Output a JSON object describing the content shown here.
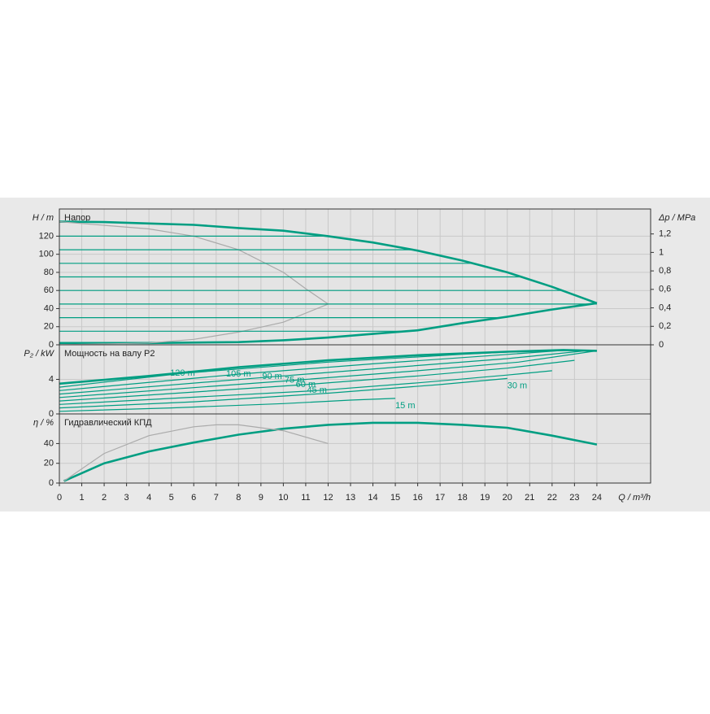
{
  "chart_data": [
    {
      "type": "line",
      "title": "Напор",
      "ylabel": "H / m",
      "y2label": "Δp / MPa",
      "xlim": [
        0,
        26.4
      ],
      "ylim": [
        0,
        150
      ],
      "yticks": [
        0,
        20,
        40,
        60,
        80,
        100,
        120
      ],
      "y2lim": [
        0,
        1.47
      ],
      "y2ticks": [
        0,
        {
          "value": 0.2,
          "label": "0,2"
        },
        {
          "value": 0.4,
          "label": "0,4"
        },
        {
          "value": 0.6,
          "label": "0,6"
        },
        {
          "value": 0.8,
          "label": "0,8"
        },
        1,
        {
          "value": 1.2,
          "label": "1,2"
        }
      ],
      "grid": true,
      "series": [
        {
          "color": "#009e82",
          "x": [
            0,
            2,
            4,
            6,
            8,
            10,
            12,
            14,
            16,
            18,
            20,
            22,
            24
          ],
          "values": [
            136,
            135.5,
            134,
            132.5,
            129,
            126,
            120,
            113,
            104,
            93,
            80,
            64,
            46
          ]
        },
        {
          "color": "#009e82",
          "x": [
            0,
            4,
            8,
            10,
            12,
            14,
            16,
            18,
            20,
            22,
            24
          ],
          "values": [
            2,
            2,
            3,
            5,
            8,
            12,
            16,
            24,
            31,
            39,
            46
          ]
        },
        {
          "color": "#aaaaaa",
          "x": [
            0,
            4,
            6,
            8,
            10,
            11,
            12
          ],
          "values": [
            136,
            128,
            120,
            105,
            80,
            62,
            45
          ]
        },
        {
          "color": "#aaaaaa",
          "x": [
            0,
            4,
            6,
            8,
            10,
            12
          ],
          "values": [
            0,
            2,
            6,
            14,
            25,
            45
          ]
        },
        {
          "color": "#009e82",
          "x": [
            0,
            12
          ],
          "values": [
            120,
            120
          ]
        },
        {
          "color": "#009e82",
          "x": [
            0,
            15.9
          ],
          "values": [
            105,
            105
          ]
        },
        {
          "color": "#009e82",
          "x": [
            0,
            18.5
          ],
          "values": [
            90,
            90
          ]
        },
        {
          "color": "#009e82",
          "x": [
            0,
            20.7
          ],
          "values": [
            75,
            75
          ]
        },
        {
          "color": "#009e82",
          "x": [
            0,
            22.5
          ],
          "values": [
            60,
            60
          ]
        },
        {
          "color": "#009e82",
          "x": [
            0,
            24
          ],
          "values": [
            45,
            45
          ]
        },
        {
          "color": "#009e82",
          "x": [
            0,
            19.8
          ],
          "values": [
            30,
            30
          ]
        },
        {
          "color": "#009e82",
          "x": [
            0,
            15.6
          ],
          "values": [
            15,
            15
          ]
        }
      ]
    },
    {
      "type": "line",
      "title": "Мощность на валу P2",
      "ylabel": "P₂ / kW",
      "xlim": [
        0,
        26.4
      ],
      "ylim": [
        0,
        8
      ],
      "yticks": [
        0,
        4
      ],
      "grid": true,
      "series": [
        {
          "color": "#009e82",
          "x": [
            0,
            4,
            8,
            12,
            16,
            20,
            22.5,
            24
          ],
          "values": [
            3.5,
            4.4,
            5.4,
            6.2,
            6.8,
            7.2,
            7.4,
            7.3
          ]
        },
        {
          "name": "120 m",
          "color": "#009e82",
          "x": [
            0,
            5.5,
            12,
            18,
            21.5
          ],
          "values": [
            3.1,
            4.7,
            6.0,
            6.9,
            7.35
          ]
        },
        {
          "name": "105 m",
          "color": "#009e82",
          "x": [
            0,
            8,
            14,
            19,
            22.5
          ],
          "values": [
            2.7,
            4.6,
            5.8,
            6.7,
            7.35
          ]
        },
        {
          "name": "90 m",
          "color": "#009e82",
          "x": [
            0,
            9.5,
            15,
            20,
            23.5
          ],
          "values": [
            2.3,
            4.3,
            5.4,
            6.4,
            7.3
          ]
        },
        {
          "name": "75 m",
          "color": "#009e82",
          "x": [
            0,
            10.5,
            16,
            20.5,
            24
          ],
          "values": [
            1.9,
            3.9,
            5.0,
            6.0,
            7.3
          ]
        },
        {
          "name": "60 m",
          "color": "#009e82",
          "x": [
            0,
            11,
            16,
            20,
            23
          ],
          "values": [
            1.5,
            3.4,
            4.4,
            5.3,
            6.2
          ]
        },
        {
          "name": "45 m",
          "color": "#009e82",
          "x": [
            0,
            11.5,
            16,
            20,
            22
          ],
          "values": [
            1.1,
            2.7,
            3.6,
            4.5,
            5.0
          ]
        },
        {
          "name": "30 m",
          "color": "#009e82",
          "x": [
            0,
            6,
            12,
            17,
            20
          ],
          "values": [
            0.7,
            1.4,
            2.4,
            3.4,
            4.1
          ]
        },
        {
          "name": "15 m",
          "color": "#009e82",
          "x": [
            0,
            5,
            10,
            13,
            15
          ],
          "values": [
            0.3,
            0.7,
            1.2,
            1.6,
            1.8
          ]
        }
      ]
    },
    {
      "type": "line",
      "title": "Гидравлический КПД",
      "ylabel": "η / %",
      "xlabel": "Q / m³/h",
      "xlim": [
        0,
        26.4
      ],
      "ylim": [
        0,
        70
      ],
      "yticks": [
        0,
        20,
        40
      ],
      "xticks": [
        0,
        1,
        2,
        3,
        4,
        5,
        6,
        7,
        8,
        9,
        10,
        11,
        12,
        13,
        14,
        15,
        16,
        17,
        18,
        19,
        20,
        21,
        22,
        23,
        24
      ],
      "grid": true,
      "series": [
        {
          "color": "#009e82",
          "x": [
            0.2,
            2,
            4,
            6,
            8,
            10,
            12,
            14,
            16,
            18,
            20,
            22,
            24
          ],
          "values": [
            2,
            20,
            32,
            41,
            49,
            55,
            59,
            61,
            61,
            59,
            56,
            48,
            39
          ]
        },
        {
          "color": "#aaaaaa",
          "x": [
            0.2,
            2,
            4,
            6,
            7,
            8,
            10,
            12
          ],
          "values": [
            2,
            30,
            48,
            57,
            59,
            59,
            53,
            40
          ]
        }
      ]
    }
  ]
}
